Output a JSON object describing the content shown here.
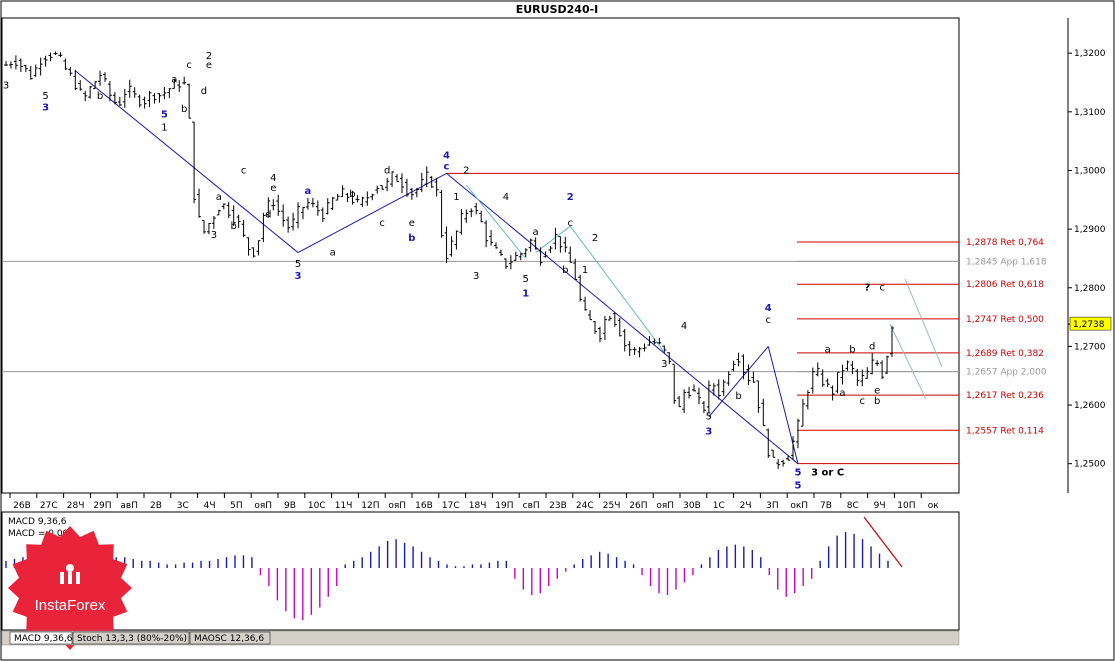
{
  "chart_data": {
    "type": "candlestick",
    "title": "EURUSD240-I",
    "symbol": "EURUSD",
    "timeframe": "H4",
    "price_axis": {
      "ylim": [
        1.245,
        1.326
      ],
      "ticks": [
        "1,3200",
        "1,3100",
        "1,3000",
        "1,2900",
        "1,2800",
        "1,2700",
        "1,2600",
        "1,2500"
      ],
      "tick_values": [
        1.32,
        1.31,
        1.3,
        1.29,
        1.28,
        1.27,
        1.26,
        1.25
      ]
    },
    "current_price": {
      "label": "1,2738",
      "value": 1.2738,
      "color": "#ffff00"
    },
    "time_axis": {
      "labels": [
        "26В",
        "27С",
        "28Ч",
        "29П",
        "авП",
        "2В",
        "3С",
        "4Ч",
        "5П",
        "ояП",
        "9В",
        "10С",
        "11Ч",
        "12П",
        "ояП",
        "16В",
        "17С",
        "18Ч",
        "19П",
        "свП",
        "23В",
        "24С",
        "25Ч",
        "26П",
        "ояП",
        "30В",
        "1С",
        "2Ч",
        "3П",
        "окП",
        "7В",
        "8С",
        "9Ч",
        "10П",
        "ок"
      ]
    },
    "price_series": [
      1.318,
      1.319,
      1.3175,
      1.316,
      1.319,
      1.32,
      1.3195,
      1.317,
      1.315,
      1.312,
      1.3145,
      1.3165,
      1.313,
      1.311,
      1.314,
      1.3125,
      1.3118,
      1.3132,
      1.3128,
      1.314,
      1.315,
      1.3145,
      1.293,
      1.2895,
      1.292,
      1.2945,
      1.293,
      1.291,
      1.287,
      1.286,
      1.293,
      1.295,
      1.292,
      1.29,
      1.293,
      1.2945,
      1.2935,
      1.2925,
      1.295,
      1.296,
      1.2955,
      1.294,
      1.2955,
      1.2975,
      1.297,
      1.2992,
      1.298,
      1.296,
      1.297,
      1.299,
      1.297,
      1.285,
      1.288,
      1.292,
      1.294,
      1.292,
      1.288,
      1.286,
      1.284,
      1.285,
      1.286,
      1.288,
      1.285,
      1.287,
      1.289,
      1.286,
      1.283,
      1.276,
      1.274,
      1.272,
      1.276,
      1.274,
      1.27,
      1.269,
      1.27,
      1.271,
      1.27,
      1.268,
      1.258,
      1.263,
      1.262,
      1.259,
      1.264,
      1.262,
      1.266,
      1.269,
      1.265,
      1.264,
      1.256,
      1.25,
      1.2505,
      1.2515,
      1.256,
      1.262,
      1.266,
      1.264,
      1.262,
      1.266,
      1.267,
      1.264,
      1.265,
      1.268,
      1.265,
      1.2738
    ],
    "wave_labels": [
      {
        "text": "3",
        "color": "#000000",
        "i": 0,
        "price": 1.314
      },
      {
        "text": "5",
        "color": "#000000",
        "i": 8,
        "price": 1.3122
      },
      {
        "text": "3",
        "color": "#1a1ab5",
        "i": 8,
        "price": 1.3102
      },
      {
        "text": "b",
        "color": "#000000",
        "i": 19,
        "price": 1.3122
      },
      {
        "text": "5",
        "color": "#1a1ab5",
        "i": 32,
        "price": 1.309
      },
      {
        "text": "1",
        "color": "#000000",
        "i": 32,
        "price": 1.3068
      },
      {
        "text": "a",
        "color": "#000000",
        "i": 34,
        "price": 1.315
      },
      {
        "text": "c",
        "color": "#000000",
        "i": 37,
        "price": 1.3175
      },
      {
        "text": "b",
        "color": "#000000",
        "i": 36,
        "price": 1.31
      },
      {
        "text": "2",
        "color": "#000000",
        "i": 41,
        "price": 1.319
      },
      {
        "text": "e",
        "color": "#000000",
        "i": 41,
        "price": 1.3175
      },
      {
        "text": "d",
        "color": "#000000",
        "i": 40,
        "price": 1.313
      },
      {
        "text": "c",
        "color": "#000000",
        "i": 48,
        "price": 1.2995
      },
      {
        "text": "4",
        "color": "#000000",
        "i": 54,
        "price": 1.2982
      },
      {
        "text": "e",
        "color": "#000000",
        "i": 54,
        "price": 1.2965
      },
      {
        "text": "a",
        "color": "#000000",
        "i": 43,
        "price": 1.295
      },
      {
        "text": "3",
        "color": "#000000",
        "i": 42,
        "price": 1.2885
      },
      {
        "text": "b",
        "color": "#000000",
        "i": 46,
        "price": 1.29
      },
      {
        "text": "d",
        "color": "#000000",
        "i": 53,
        "price": 1.292
      },
      {
        "text": "a",
        "color": "#1a1ab5",
        "i": 61,
        "price": 1.296
      },
      {
        "text": "5",
        "color": "#000000",
        "i": 59,
        "price": 1.2835
      },
      {
        "text": "3",
        "color": "#1a1ab5",
        "i": 59,
        "price": 1.2815
      },
      {
        "text": "a",
        "color": "#000000",
        "i": 66,
        "price": 1.2855
      },
      {
        "text": "b",
        "color": "#000000",
        "i": 70,
        "price": 1.2955
      },
      {
        "text": "c",
        "color": "#000000",
        "i": 76,
        "price": 1.2905
      },
      {
        "text": "d",
        "color": "#000000",
        "i": 77,
        "price": 1.2995
      },
      {
        "text": "e",
        "color": "#000000",
        "i": 82,
        "price": 1.2905
      },
      {
        "text": "b",
        "color": "#1a1ab5",
        "i": 82,
        "price": 1.288
      },
      {
        "text": "4",
        "color": "#1a1ab5",
        "i": 89,
        "price": 1.302
      },
      {
        "text": "c",
        "color": "#1a1ab5",
        "i": 89,
        "price": 1.3002
      },
      {
        "text": "2",
        "color": "#000000",
        "i": 93,
        "price": 1.2995
      },
      {
        "text": "1",
        "color": "#000000",
        "i": 91,
        "price": 1.295
      },
      {
        "text": "4",
        "color": "#000000",
        "i": 101,
        "price": 1.295
      },
      {
        "text": "3",
        "color": "#000000",
        "i": 95,
        "price": 1.2815
      },
      {
        "text": "a",
        "color": "#000000",
        "i": 107,
        "price": 1.289
      },
      {
        "text": "2",
        "color": "#1a1ab5",
        "i": 114,
        "price": 1.295
      },
      {
        "text": "c",
        "color": "#000000",
        "i": 114,
        "price": 1.2905
      },
      {
        "text": "2",
        "color": "#000000",
        "i": 119,
        "price": 1.288
      },
      {
        "text": "b",
        "color": "#000000",
        "i": 113,
        "price": 1.2825
      },
      {
        "text": "1",
        "color": "#000000",
        "i": 117,
        "price": 1.2825
      },
      {
        "text": "5",
        "color": "#000000",
        "i": 105,
        "price": 1.281
      },
      {
        "text": "1",
        "color": "#1a1ab5",
        "i": 105,
        "price": 1.2785
      },
      {
        "text": "4",
        "color": "#000000",
        "i": 137,
        "price": 1.273
      },
      {
        "text": "3",
        "color": "#000000",
        "i": 133,
        "price": 1.2665
      },
      {
        "text": "5",
        "color": "#000000",
        "i": 142,
        "price": 1.2575
      },
      {
        "text": "3",
        "color": "#1a1ab5",
        "i": 142,
        "price": 1.255
      },
      {
        "text": "4",
        "color": "#1a1ab5",
        "i": 154,
        "price": 1.276
      },
      {
        "text": "c",
        "color": "#000000",
        "i": 154,
        "price": 1.274
      },
      {
        "text": "b",
        "color": "#000000",
        "i": 148,
        "price": 1.261
      },
      {
        "text": "5",
        "color": "#1a1ab5",
        "i": 160,
        "price": 1.248
      },
      {
        "text": "5",
        "color": "#1a1ab5",
        "i": 160,
        "price": 1.2458
      },
      {
        "text": "3 or C",
        "color": "#000000",
        "i": 166,
        "price": 1.248
      },
      {
        "text": "a",
        "color": "#000000",
        "i": 166,
        "price": 1.269
      },
      {
        "text": "b",
        "color": "#000000",
        "i": 171,
        "price": 1.269
      },
      {
        "text": "d",
        "color": "#000000",
        "i": 175,
        "price": 1.2695
      },
      {
        "text": "a",
        "color": "#000000",
        "i": 169,
        "price": 1.2615
      },
      {
        "text": "c",
        "color": "#000000",
        "i": 173,
        "price": 1.2602
      },
      {
        "text": "e",
        "color": "#000000",
        "i": 176,
        "price": 1.262
      },
      {
        "text": "b",
        "color": "#000000",
        "i": 176,
        "price": 1.2602
      },
      {
        "text": "?",
        "color": "#000000",
        "i": 174,
        "price": 1.2795
      },
      {
        "text": "c",
        "color": "#000000",
        "i": 177,
        "price": 1.2795
      }
    ],
    "fib_levels": [
      {
        "label": "1,2878 Ret 0,764",
        "value": 1.2878,
        "color": "#cc0000"
      },
      {
        "label": "1,2845 App 1,618",
        "value": 1.2845,
        "color": "#999999"
      },
      {
        "label": "1,2806 Ret 0,618",
        "value": 1.2806,
        "color": "#cc0000"
      },
      {
        "label": "1,2747 Ret 0,500",
        "value": 1.2747,
        "color": "#cc0000"
      },
      {
        "label": "1,2689 Ret 0,382",
        "value": 1.2689,
        "color": "#cc0000"
      },
      {
        "label": "1,2657 App 2,000",
        "value": 1.2657,
        "color": "#999999"
      },
      {
        "label": "1,2617 Ret 0,236",
        "value": 1.2617,
        "color": "#cc0000"
      },
      {
        "label": "1,2557 Ret 0,114",
        "value": 1.2557,
        "color": "#cc0000"
      }
    ],
    "horizontal_lines": [
      {
        "value": 1.2995,
        "color": "#cc0000"
      },
      {
        "value": 1.25,
        "color": "#cc0000"
      }
    ],
    "macd": {
      "label1": "MACD 9,36,6",
      "label2": "MACD = 0,00",
      "values": [
        0.2,
        0.25,
        0.3,
        0.3,
        0.35,
        0.4,
        0.45,
        0.45,
        0.4,
        0.35,
        0.35,
        0.3,
        0.3,
        0.3,
        0.3,
        0.25,
        0.2,
        0.2,
        0.15,
        0.1,
        0.1,
        0.15,
        0.15,
        0.2,
        0.2,
        0.25,
        0.3,
        0.35,
        0.35,
        0.3,
        -0.2,
        -0.5,
        -0.9,
        -1.2,
        -1.4,
        -1.45,
        -1.3,
        -1.1,
        -0.8,
        -0.5,
        0.1,
        0.2,
        0.3,
        0.45,
        0.6,
        0.75,
        0.8,
        0.7,
        0.6,
        0.45,
        0.3,
        0.2,
        0.1,
        0.05,
        0.05,
        0.1,
        0.1,
        0.15,
        0.2,
        0.2,
        -0.3,
        -0.6,
        -0.75,
        -0.7,
        -0.5,
        -0.3,
        -0.1,
        0.1,
        0.25,
        0.35,
        0.45,
        0.4,
        0.3,
        0.2,
        0.1,
        -0.2,
        -0.5,
        -0.7,
        -0.75,
        -0.6,
        -0.4,
        -0.2,
        0.1,
        0.3,
        0.5,
        0.6,
        0.65,
        0.6,
        0.5,
        0.3,
        -0.2,
        -0.6,
        -0.8,
        -0.7,
        -0.5,
        -0.3,
        0.2,
        0.6,
        0.9,
        1.0,
        0.95,
        0.8,
        0.6,
        0.4,
        0.2
      ],
      "positive_color": "#1a1ab5",
      "negative_color": "#cc00cc"
    },
    "macd_trendline_color": "#cc0000"
  },
  "tabs": [
    "MACD 9,36,6",
    "Stoch 13,3,3 (80%-20%)",
    "MAOSC 12,36,6"
  ],
  "brand": {
    "name": "InstaForex",
    "color": "#e8233a"
  }
}
